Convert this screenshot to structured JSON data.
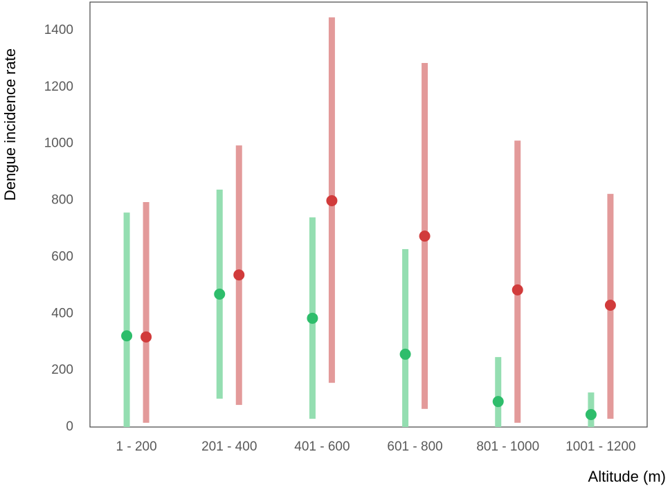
{
  "chart_data": {
    "type": "range",
    "x_label": "Altitude (m)",
    "y_label": "Dengue incidence rate",
    "categories": [
      "1 - 200",
      "201 - 400",
      "401 - 600",
      "601 - 800",
      "801 - 1000",
      "1001 - 1200"
    ],
    "series": [
      {
        "color": "#2ebd6b",
        "range_color": "#94deb1",
        "values": [
          322,
          469,
          384,
          257,
          90,
          44
        ],
        "low": [
          0,
          100,
          29,
          0,
          0,
          0
        ],
        "high": [
          757,
          838,
          740,
          628,
          247,
          122
        ]
      },
      {
        "color": "#d13b3b",
        "range_color": "#e39a9a",
        "values": [
          318,
          537,
          799,
          674,
          484,
          430
        ],
        "low": [
          15,
          78,
          156,
          64,
          15,
          29
        ],
        "high": [
          794,
          994,
          1446,
          1285,
          1011,
          823
        ]
      }
    ],
    "ylim": [
      0,
      1500
    ],
    "yticks": [
      0,
      200,
      400,
      600,
      800,
      1000,
      1200,
      1400
    ]
  }
}
